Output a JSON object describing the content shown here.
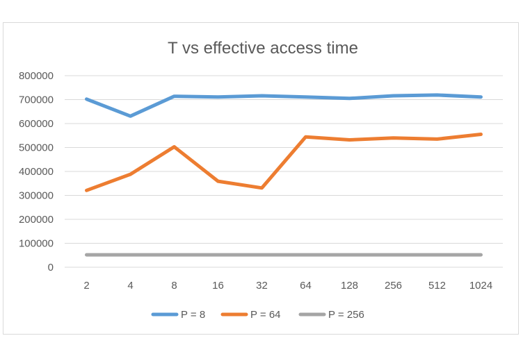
{
  "chart_data": {
    "type": "line",
    "title": "T vs effective access time",
    "xlabel": "",
    "ylabel": "",
    "categories": [
      "2",
      "4",
      "8",
      "16",
      "32",
      "64",
      "128",
      "256",
      "512",
      "1024"
    ],
    "ylim": [
      0,
      800000
    ],
    "yticks": [
      0,
      100000,
      200000,
      300000,
      400000,
      500000,
      600000,
      700000,
      800000
    ],
    "ytick_labels": [
      "0",
      "100000",
      "200000",
      "300000",
      "400000",
      "500000",
      "600000",
      "700000",
      "800000"
    ],
    "grid": true,
    "legend_position": "bottom",
    "series": [
      {
        "name": "P = 8",
        "color": "#5b9bd5",
        "values": [
          702000,
          631000,
          714000,
          711000,
          716000,
          711000,
          705000,
          716000,
          719000,
          711000
        ]
      },
      {
        "name": "P = 64",
        "color": "#ed7d31",
        "values": [
          321000,
          388000,
          503000,
          359000,
          331000,
          544000,
          532000,
          540000,
          535000,
          555000
        ]
      },
      {
        "name": "P = 256",
        "color": "#a5a5a5",
        "values": [
          52000,
          52000,
          52000,
          52000,
          52000,
          52000,
          52000,
          52000,
          52000,
          52000
        ]
      }
    ]
  }
}
